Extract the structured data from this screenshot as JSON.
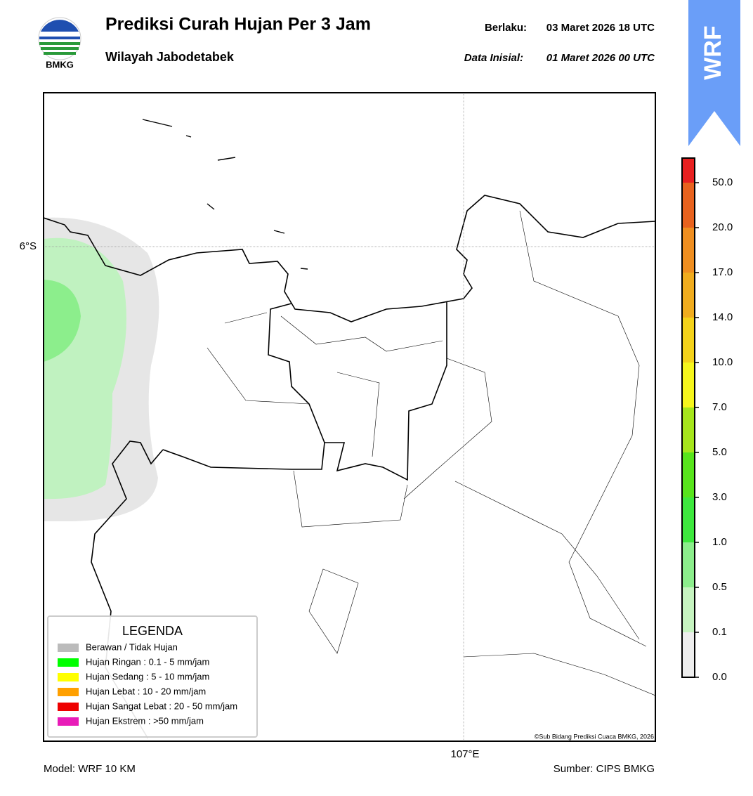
{
  "logo": {
    "text": "BMKG"
  },
  "badge": "WRF",
  "header": {
    "title": "Prediksi Curah Hujan Per 3 Jam",
    "subtitle": "Wilayah Jabodetabek",
    "valid_label": "Berlaku:",
    "valid_value": "03 Maret 2026 18 UTC",
    "init_label": "Data Inisial:",
    "init_value": "01 Maret 2026 00 UTC"
  },
  "map": {
    "lat_label": "6°S",
    "lon_label": "107°E",
    "credit": "©Sub Bidang Prediksi Cuaca BMKG, 2026"
  },
  "legend": {
    "title": "LEGENDA",
    "items": [
      {
        "color": "#bbbbbb",
        "label": "Berawan / Tidak Hujan"
      },
      {
        "color": "#00ff00",
        "label": "Hujan Ringan : 0.1 - 5 mm/jam"
      },
      {
        "color": "#ffff00",
        "label": "Hujan Sedang : 5 - 10 mm/jam"
      },
      {
        "color": "#ffa000",
        "label": "Hujan Lebat : 10 - 20 mm/jam"
      },
      {
        "color": "#ee0000",
        "label": "Hujan Sangat Lebat : 20 - 50 mm/jam"
      },
      {
        "color": "#e81cb8",
        "label": "Hujan Ekstrem : >50 mm/jam"
      }
    ]
  },
  "colorbar": {
    "ticks": [
      "0.0",
      "0.1",
      "0.5",
      "1.0",
      "3.0",
      "5.0",
      "7.0",
      "10.0",
      "14.0",
      "17.0",
      "20.0",
      "50.0"
    ],
    "colors": [
      "#eeeeee",
      "#c6f4c0",
      "#8cee8c",
      "#3ee83e",
      "#58e41c",
      "#a6e61c",
      "#f6f61c",
      "#f4d21a",
      "#f0ac1e",
      "#ef8e20",
      "#e8621e",
      "#e82020",
      "#e21cb0"
    ]
  },
  "footer": {
    "model": "Model: WRF 10 KM",
    "source": "Sumber: CIPS BMKG"
  }
}
